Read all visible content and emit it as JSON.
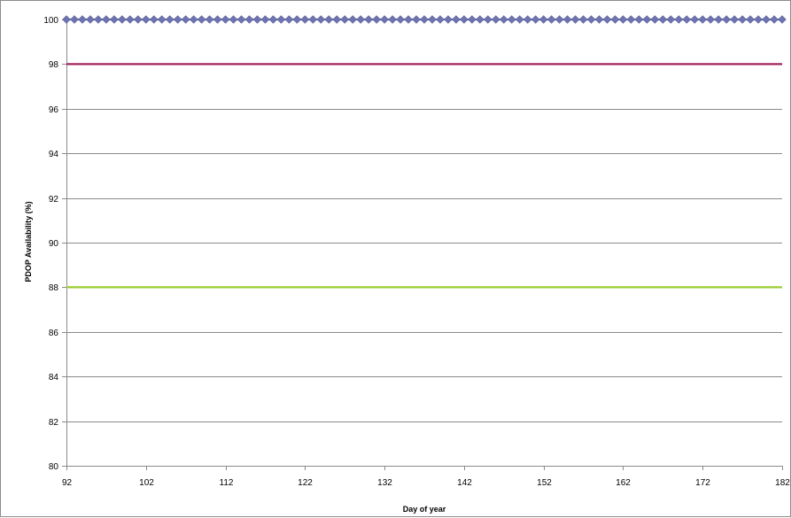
{
  "chart_data": {
    "type": "line",
    "title": "",
    "xlabel": "Day of year",
    "ylabel": "PDOP Availability (%)",
    "xlim": [
      92,
      182
    ],
    "ylim": [
      80,
      100
    ],
    "xticks": [
      92,
      102,
      112,
      122,
      132,
      142,
      152,
      162,
      172,
      182
    ],
    "yticks": [
      80,
      82,
      84,
      86,
      88,
      90,
      92,
      94,
      96,
      98,
      100
    ],
    "grid": true,
    "legend": "none",
    "series": [
      {
        "color": "#6f74b0",
        "marker": "diamond",
        "x_start": 92,
        "x_end": 182,
        "x_step": 1,
        "value": 100
      },
      {
        "color": "#a3245a",
        "marker": "none",
        "x": [
          92,
          182
        ],
        "values": [
          98,
          98
        ]
      },
      {
        "color": "#9acd32",
        "marker": "none",
        "x": [
          92,
          182
        ],
        "values": [
          88,
          88
        ]
      }
    ]
  }
}
